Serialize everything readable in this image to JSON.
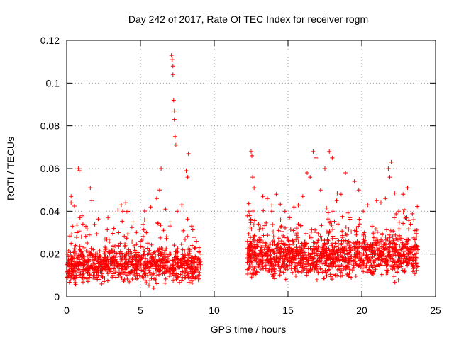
{
  "chart_data": {
    "type": "scatter",
    "title": "Day 242 of 2017, Rate Of TEC Index for receiver rogm",
    "xlabel": "GPS time / hours",
    "ylabel": "ROTI / TECUs",
    "xlim": [
      0,
      25
    ],
    "ylim": [
      0,
      0.12
    ],
    "x_ticks": [
      0,
      5,
      10,
      15,
      20,
      25
    ],
    "y_ticks": [
      0,
      0.02,
      0.04,
      0.06,
      0.08,
      0.1,
      0.12
    ],
    "x_tick_labels": [
      "0",
      "5",
      "10",
      "15",
      "20",
      "25"
    ],
    "y_tick_labels": [
      "0",
      "0.02",
      "0.04",
      "0.06",
      "0.08",
      "0.1",
      "0.12"
    ],
    "grid": true,
    "marker": "+",
    "color": "#ff0000",
    "series": [
      {
        "name": "ROTI",
        "points": [
          [
            0.1,
            0.016
          ],
          [
            0.2,
            0.014
          ],
          [
            0.3,
            0.025
          ],
          [
            0.3,
            0.044
          ],
          [
            0.3,
            0.047
          ],
          [
            0.4,
            0.033
          ],
          [
            0.5,
            0.019
          ],
          [
            0.6,
            0.024
          ],
          [
            0.7,
            0.03
          ],
          [
            0.8,
            0.06
          ],
          [
            0.85,
            0.059
          ],
          [
            0.9,
            0.037
          ],
          [
            1.0,
            0.028
          ],
          [
            1.1,
            0.034
          ],
          [
            1.2,
            0.015
          ],
          [
            1.3,
            0.033
          ],
          [
            1.5,
            0.012
          ],
          [
            1.6,
            0.051
          ],
          [
            1.7,
            0.045
          ],
          [
            1.8,
            0.022
          ],
          [
            2.0,
            0.017
          ],
          [
            2.3,
            0.019
          ],
          [
            2.6,
            0.02
          ],
          [
            2.9,
            0.021
          ],
          [
            3.2,
            0.032
          ],
          [
            3.5,
            0.024
          ],
          [
            3.7,
            0.043
          ],
          [
            3.8,
            0.04
          ],
          [
            4.0,
            0.044
          ],
          [
            4.2,
            0.022
          ],
          [
            4.5,
            0.035
          ],
          [
            4.7,
            0.019
          ],
          [
            5.0,
            0.026
          ],
          [
            5.2,
            0.009
          ],
          [
            5.4,
            0.03
          ],
          [
            5.7,
            0.042
          ],
          [
            5.9,
            0.004
          ],
          [
            6.1,
            0.046
          ],
          [
            6.3,
            0.05
          ],
          [
            6.4,
            0.06
          ],
          [
            6.7,
            0.041
          ],
          [
            7.0,
            0.035
          ],
          [
            7.1,
            0.113
          ],
          [
            7.15,
            0.111
          ],
          [
            7.2,
            0.108
          ],
          [
            7.2,
            0.104
          ],
          [
            7.25,
            0.092
          ],
          [
            7.3,
            0.087
          ],
          [
            7.3,
            0.083
          ],
          [
            7.35,
            0.075
          ],
          [
            7.4,
            0.071
          ],
          [
            7.5,
            0.04
          ],
          [
            7.8,
            0.043
          ],
          [
            8.1,
            0.059
          ],
          [
            8.2,
            0.056
          ],
          [
            8.25,
            0.067
          ],
          [
            8.5,
            0.024
          ],
          [
            8.8,
            0.026
          ],
          [
            9.1,
            0.02
          ],
          [
            12.3,
            0.02
          ],
          [
            12.4,
            0.038
          ],
          [
            12.5,
            0.068
          ],
          [
            12.55,
            0.066
          ],
          [
            12.6,
            0.056
          ],
          [
            12.7,
            0.051
          ],
          [
            13.0,
            0.034
          ],
          [
            13.3,
            0.047
          ],
          [
            13.6,
            0.046
          ],
          [
            13.9,
            0.04
          ],
          [
            14.2,
            0.048
          ],
          [
            14.5,
            0.036
          ],
          [
            14.8,
            0.04
          ],
          [
            15.1,
            0.037
          ],
          [
            15.4,
            0.042
          ],
          [
            15.7,
            0.043
          ],
          [
            16.0,
            0.047
          ],
          [
            16.3,
            0.058
          ],
          [
            16.5,
            0.056
          ],
          [
            16.7,
            0.068
          ],
          [
            16.9,
            0.065
          ],
          [
            17.2,
            0.05
          ],
          [
            17.5,
            0.06
          ],
          [
            17.8,
            0.068
          ],
          [
            18.0,
            0.065
          ],
          [
            18.3,
            0.045
          ],
          [
            18.6,
            0.048
          ],
          [
            18.9,
            0.058
          ],
          [
            19.2,
            0.037
          ],
          [
            19.5,
            0.054
          ],
          [
            19.8,
            0.05
          ],
          [
            20.1,
            0.04
          ],
          [
            20.4,
            0.043
          ],
          [
            20.7,
            0.033
          ],
          [
            21.0,
            0.045
          ],
          [
            21.3,
            0.044
          ],
          [
            21.6,
            0.046
          ],
          [
            21.8,
            0.06
          ],
          [
            21.9,
            0.056
          ],
          [
            22.0,
            0.063
          ],
          [
            22.2,
            0.037
          ],
          [
            22.5,
            0.04
          ],
          [
            22.8,
            0.048
          ],
          [
            23.1,
            0.051
          ],
          [
            23.3,
            0.034
          ],
          [
            23.6,
            0.031
          ],
          [
            23.8,
            0.022
          ]
        ]
      }
    ],
    "dense_bands": [
      {
        "x_start": 0.0,
        "x_end": 9.1,
        "y_center": 0.015,
        "y_spread": 0.008,
        "count": 950
      },
      {
        "x_start": 12.2,
        "x_end": 23.8,
        "y_center": 0.019,
        "y_spread": 0.01,
        "count": 1300
      }
    ]
  }
}
